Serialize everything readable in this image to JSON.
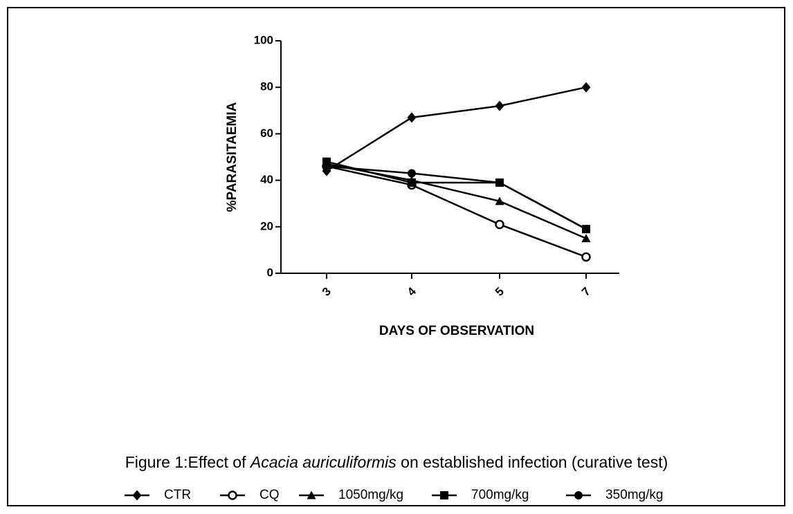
{
  "chart_data": {
    "type": "line",
    "caption": [
      "Figure 1:Effect of ",
      "Acacia auriculiformis",
      " on established infection (curative test)"
    ],
    "xlabel": "DAYS OF OBSERVATION",
    "ylabel": "%PARASITAEMIA",
    "categories": [
      "3",
      "4",
      "5",
      "7"
    ],
    "ylim": [
      0,
      100
    ],
    "yticks": [
      0,
      20,
      40,
      60,
      80,
      100
    ],
    "legend": "bottom",
    "series": [
      {
        "name": "CTR",
        "color": "#000000",
        "marker": "diamond",
        "values": [
          44,
          67,
          72,
          80
        ]
      },
      {
        "name": "CQ",
        "color": "#000000",
        "marker": "open-circle",
        "values": [
          46,
          38,
          21,
          7
        ]
      },
      {
        "name": "1050mg/kg",
        "color": "#000000",
        "marker": "triangle",
        "values": [
          47,
          40,
          31,
          15
        ]
      },
      {
        "name": "700mg/kg",
        "color": "#000000",
        "marker": "square",
        "values": [
          48,
          39,
          39,
          19
        ]
      },
      {
        "name": "350mg/kg",
        "color": "#000000",
        "marker": "circle",
        "values": [
          46,
          43,
          39,
          19
        ]
      }
    ]
  }
}
